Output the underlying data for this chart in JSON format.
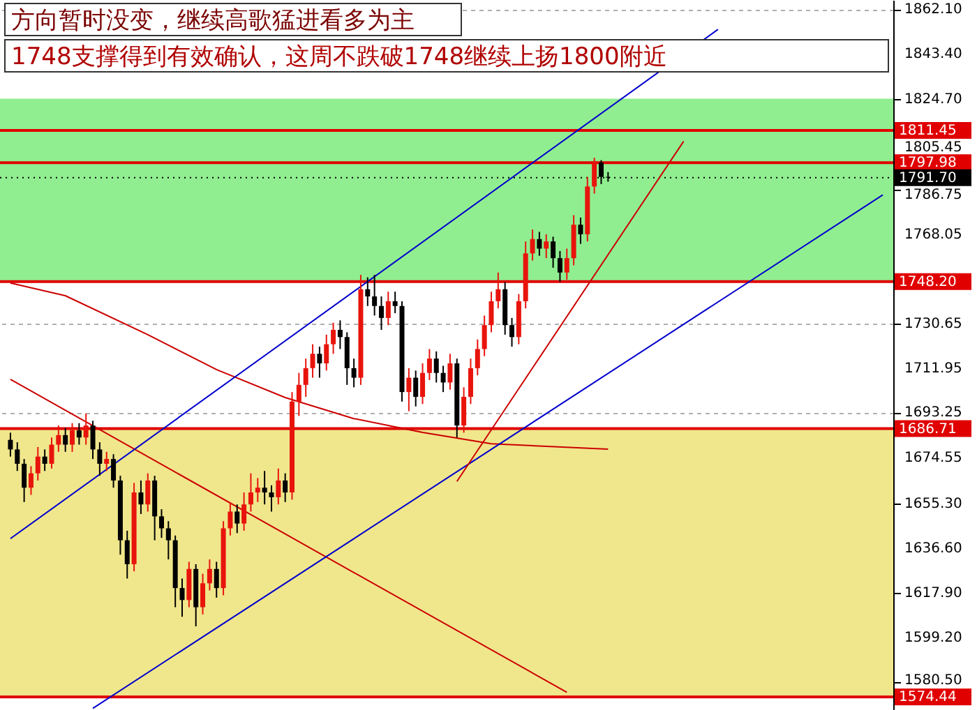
{
  "chart_data": {
    "type": "candlestick",
    "title": "方向暂时没变，继续高歌猛进看多为主",
    "subtitle": "1748支撑得到有效确认，这周不跌破1748继续上扬1800附近",
    "categories": [
      null,
      null,
      null,
      null,
      null,
      null,
      null,
      null,
      null,
      null,
      null,
      null,
      null,
      null,
      null,
      null,
      null,
      null,
      null,
      null,
      null,
      null,
      null,
      null,
      null,
      null,
      null,
      null,
      null,
      null,
      null,
      null,
      null,
      null,
      null,
      null,
      null,
      null,
      null,
      null,
      null,
      null,
      null,
      null,
      null,
      null,
      null,
      null,
      null,
      null,
      null,
      null,
      null,
      null,
      null,
      null,
      null,
      null,
      null,
      null,
      null,
      null,
      null,
      null,
      null,
      null,
      null,
      null,
      null,
      null,
      null,
      null,
      null,
      null,
      null,
      null,
      null,
      null,
      null,
      null,
      null,
      null,
      null,
      null,
      null,
      null,
      null,
      null,
      null,
      null,
      null,
      null,
      null,
      null,
      null,
      null,
      null,
      null,
      null,
      null,
      null,
      null,
      null,
      null,
      null,
      null,
      null,
      null,
      null,
      null,
      null,
      null,
      null,
      null,
      null,
      null,
      null,
      null,
      null,
      null,
      null,
      null,
      null,
      null,
      null,
      null,
      null,
      null
    ],
    "ohlc": [
      [
        1682,
        1685,
        1675,
        1678
      ],
      [
        1678,
        1681,
        1669,
        1672
      ],
      [
        1672,
        1674,
        1656,
        1662
      ],
      [
        1662,
        1671,
        1659,
        1668
      ],
      [
        1668,
        1679,
        1665,
        1675
      ],
      [
        1675,
        1678,
        1669,
        1672
      ],
      [
        1672,
        1683,
        1670,
        1680
      ],
      [
        1680,
        1688,
        1677,
        1684
      ],
      [
        1684,
        1687,
        1677,
        1680
      ],
      [
        1680,
        1689,
        1677,
        1686
      ],
      [
        1686,
        1689,
        1680,
        1683
      ],
      [
        1683,
        1693,
        1680,
        1688
      ],
      [
        1688,
        1690,
        1674,
        1678
      ],
      [
        1678,
        1681,
        1667,
        1672
      ],
      [
        1672,
        1677,
        1669,
        1674
      ],
      [
        1674,
        1676,
        1662,
        1665
      ],
      [
        1665,
        1667,
        1634,
        1640
      ],
      [
        1640,
        1644,
        1624,
        1630
      ],
      [
        1630,
        1664,
        1627,
        1660
      ],
      [
        1660,
        1665,
        1651,
        1655
      ],
      [
        1655,
        1668,
        1652,
        1665
      ],
      [
        1665,
        1667,
        1640,
        1650
      ],
      [
        1650,
        1653,
        1641,
        1645
      ],
      [
        1645,
        1648,
        1632,
        1640
      ],
      [
        1640,
        1642,
        1612,
        1620
      ],
      [
        1620,
        1624,
        1608,
        1615
      ],
      [
        1615,
        1631,
        1612,
        1628
      ],
      [
        1628,
        1630,
        1604,
        1612
      ],
      [
        1612,
        1626,
        1609,
        1622
      ],
      [
        1622,
        1632,
        1619,
        1628
      ],
      [
        1628,
        1631,
        1616,
        1620
      ],
      [
        1620,
        1648,
        1617,
        1645
      ],
      [
        1645,
        1656,
        1642,
        1652
      ],
      [
        1652,
        1655,
        1643,
        1647
      ],
      [
        1647,
        1660,
        1644,
        1655
      ],
      [
        1655,
        1668,
        1652,
        1660
      ],
      [
        1660,
        1666,
        1656,
        1662
      ],
      [
        1662,
        1669,
        1655,
        1660
      ],
      [
        1660,
        1663,
        1652,
        1658
      ],
      [
        1658,
        1670,
        1655,
        1665
      ],
      [
        1665,
        1668,
        1656,
        1660
      ],
      [
        1660,
        1702,
        1657,
        1698
      ],
      [
        1698,
        1710,
        1692,
        1705
      ],
      [
        1705,
        1716,
        1700,
        1712
      ],
      [
        1712,
        1722,
        1708,
        1718
      ],
      [
        1718,
        1721,
        1708,
        1714
      ],
      [
        1714,
        1726,
        1711,
        1722
      ],
      [
        1722,
        1731,
        1718,
        1728
      ],
      [
        1728,
        1732,
        1720,
        1725
      ],
      [
        1725,
        1727,
        1705,
        1712
      ],
      [
        1712,
        1716,
        1704,
        1708
      ],
      [
        1708,
        1751,
        1705,
        1745
      ],
      [
        1745,
        1750,
        1738,
        1742
      ],
      [
        1742,
        1751,
        1734,
        1738
      ],
      [
        1738,
        1742,
        1728,
        1733
      ],
      [
        1733,
        1744,
        1730,
        1740
      ],
      [
        1740,
        1744,
        1735,
        1738
      ],
      [
        1738,
        1740,
        1698,
        1702
      ],
      [
        1702,
        1712,
        1694,
        1708
      ],
      [
        1708,
        1711,
        1696,
        1700
      ],
      [
        1700,
        1714,
        1697,
        1710
      ],
      [
        1710,
        1720,
        1707,
        1716
      ],
      [
        1716,
        1719,
        1706,
        1710
      ],
      [
        1710,
        1713,
        1702,
        1706
      ],
      [
        1706,
        1718,
        1703,
        1714
      ],
      [
        1714,
        1716,
        1683,
        1688
      ],
      [
        1688,
        1704,
        1685,
        1700
      ],
      [
        1700,
        1716,
        1697,
        1712
      ],
      [
        1712,
        1724,
        1709,
        1720
      ],
      [
        1720,
        1734,
        1717,
        1730
      ],
      [
        1730,
        1744,
        1727,
        1740
      ],
      [
        1740,
        1752,
        1737,
        1745
      ],
      [
        1745,
        1748,
        1726,
        1730
      ],
      [
        1730,
        1733,
        1721,
        1725
      ],
      [
        1725,
        1743,
        1722,
        1740
      ],
      [
        1740,
        1765,
        1737,
        1760
      ],
      [
        1760,
        1770,
        1757,
        1766
      ],
      [
        1766,
        1769,
        1759,
        1762
      ],
      [
        1762,
        1768,
        1758,
        1765
      ],
      [
        1765,
        1767,
        1754,
        1758
      ],
      [
        1758,
        1761,
        1748,
        1752
      ],
      [
        1752,
        1762,
        1749,
        1758
      ],
      [
        1758,
        1776,
        1755,
        1772
      ],
      [
        1772,
        1775,
        1764,
        1768
      ],
      [
        1768,
        1792,
        1765,
        1788
      ],
      [
        1788,
        1800,
        1785,
        1798
      ],
      [
        1798,
        1799,
        1789,
        1792
      ],
      [
        1792,
        1794,
        1790,
        1791.7
      ],
      null,
      null,
      null,
      null,
      null,
      null,
      null,
      null,
      null,
      null,
      null,
      null,
      null,
      null,
      null,
      null,
      null,
      null,
      null,
      null,
      null,
      null,
      null,
      null,
      null,
      null,
      null,
      null,
      null,
      null,
      null,
      null,
      null,
      null,
      null,
      null,
      null,
      null,
      null,
      null
    ],
    "series": [
      {
        "type": "line",
        "color": "#cc0000",
        "values": [
          1747.6,
          null,
          null,
          null,
          null,
          null,
          null,
          null,
          1742.3,
          null,
          null,
          null,
          null,
          null,
          null,
          null,
          null,
          null,
          null,
          null,
          1726.0,
          null,
          null,
          null,
          null,
          null,
          null,
          null,
          null,
          null,
          1711.4,
          null,
          null,
          null,
          null,
          null,
          null,
          null,
          null,
          null,
          1699.7,
          null,
          null,
          null,
          null,
          null,
          null,
          null,
          null,
          null,
          1690.9,
          null,
          null,
          null,
          null,
          null,
          null,
          null,
          null,
          null,
          1685.1,
          null,
          null,
          null,
          null,
          null,
          null,
          null,
          null,
          null,
          1680.4,
          null,
          null,
          null,
          null,
          null,
          null,
          null,
          null,
          null,
          null,
          null,
          null,
          null,
          null,
          null,
          null,
          1678.1,
          null,
          null,
          null,
          null,
          null,
          null,
          null,
          null,
          null,
          null,
          null,
          null,
          null,
          null,
          null,
          null,
          null,
          null,
          null,
          null,
          null,
          null,
          null,
          null,
          null,
          null,
          null,
          null,
          null,
          null,
          null,
          null,
          null,
          null,
          null,
          null,
          null,
          null,
          null,
          null
        ]
      },
      {
        "type": "line",
        "color": "#cc0000",
        "values": [
          1707.3,
          null,
          null,
          null,
          null,
          null,
          null,
          null,
          null,
          null,
          null,
          null,
          null,
          null,
          null,
          null,
          null,
          null,
          null,
          null,
          null,
          null,
          null,
          null,
          null,
          null,
          null,
          null,
          null,
          null,
          null,
          null,
          null,
          null,
          null,
          null,
          null,
          null,
          null,
          null,
          null,
          null,
          null,
          null,
          null,
          null,
          null,
          null,
          null,
          null,
          null,
          null,
          null,
          null,
          null,
          null,
          null,
          null,
          null,
          null,
          null,
          null,
          null,
          null,
          null,
          null,
          null,
          null,
          null,
          null,
          null,
          null,
          null,
          null,
          null,
          null,
          null,
          null,
          null,
          null,
          null,
          1576.4,
          null,
          null,
          null,
          null,
          null,
          null,
          null,
          null,
          null,
          null,
          null,
          null,
          null,
          null,
          null,
          null,
          null,
          null,
          null,
          null,
          null,
          null,
          null,
          null,
          null,
          null,
          null,
          null,
          null,
          null,
          null,
          null,
          null,
          null,
          null,
          null,
          null,
          null,
          null,
          null,
          null,
          null,
          null,
          null,
          null,
          null
        ]
      },
      {
        "type": "line",
        "color": "#0000cc",
        "values": [
          null,
          null,
          null,
          null,
          null,
          null,
          null,
          null,
          null,
          null,
          null,
          null,
          1569.7,
          null,
          null,
          null,
          null,
          null,
          null,
          null,
          null,
          null,
          null,
          null,
          null,
          null,
          null,
          null,
          null,
          null,
          null,
          null,
          null,
          null,
          null,
          null,
          null,
          null,
          null,
          null,
          null,
          null,
          null,
          null,
          null,
          null,
          null,
          null,
          null,
          null,
          null,
          null,
          null,
          null,
          null,
          null,
          null,
          null,
          null,
          null,
          null,
          null,
          null,
          null,
          null,
          null,
          null,
          null,
          null,
          null,
          null,
          null,
          null,
          null,
          null,
          null,
          null,
          null,
          null,
          null,
          null,
          null,
          null,
          null,
          null,
          null,
          null,
          null,
          null,
          null,
          null,
          null,
          null,
          null,
          null,
          null,
          null,
          null,
          null,
          null,
          null,
          null,
          null,
          null,
          null,
          null,
          null,
          null,
          null,
          null,
          null,
          null,
          null,
          null,
          null,
          null,
          null,
          null,
          null,
          null,
          null,
          null,
          null,
          null,
          null,
          null,
          null,
          1784.5
        ]
      },
      {
        "type": "line",
        "color": "#0000cc",
        "values": [
          1640.7,
          null,
          null,
          null,
          null,
          null,
          null,
          null,
          null,
          null,
          null,
          null,
          null,
          null,
          null,
          null,
          null,
          null,
          null,
          null,
          null,
          null,
          null,
          null,
          null,
          null,
          null,
          null,
          null,
          null,
          null,
          null,
          null,
          null,
          null,
          null,
          null,
          null,
          null,
          null,
          null,
          null,
          null,
          null,
          null,
          null,
          null,
          null,
          null,
          null,
          null,
          null,
          null,
          null,
          null,
          null,
          null,
          null,
          null,
          null,
          null,
          null,
          null,
          null,
          null,
          null,
          null,
          null,
          null,
          null,
          null,
          null,
          null,
          null,
          null,
          null,
          null,
          null,
          null,
          null,
          null,
          null,
          null,
          null,
          null,
          null,
          null,
          null,
          null,
          null,
          null,
          null,
          null,
          null,
          null,
          null,
          null,
          null,
          null,
          null,
          null,
          null,
          null,
          1853.7,
          null,
          null,
          null,
          null,
          null,
          null,
          null,
          null,
          null,
          null,
          null,
          null,
          null,
          null,
          null,
          null,
          null,
          null,
          null,
          null,
          null,
          null,
          null,
          null
        ]
      },
      {
        "type": "line",
        "color": "#cc0000",
        "values": [
          null,
          null,
          null,
          null,
          null,
          null,
          null,
          null,
          null,
          null,
          null,
          null,
          null,
          null,
          null,
          null,
          null,
          null,
          null,
          null,
          null,
          null,
          null,
          null,
          null,
          null,
          null,
          null,
          null,
          null,
          null,
          null,
          null,
          null,
          null,
          null,
          null,
          null,
          null,
          null,
          null,
          null,
          null,
          null,
          null,
          null,
          null,
          null,
          null,
          null,
          null,
          null,
          null,
          null,
          null,
          null,
          null,
          null,
          null,
          null,
          null,
          null,
          null,
          null,
          null,
          1664.6,
          null,
          null,
          null,
          null,
          null,
          null,
          null,
          null,
          null,
          null,
          null,
          null,
          null,
          null,
          null,
          null,
          null,
          null,
          null,
          null,
          null,
          null,
          null,
          null,
          null,
          null,
          null,
          null,
          null,
          null,
          null,
          null,
          1806.9,
          null,
          null,
          null,
          null,
          null,
          null,
          null,
          null,
          null,
          null,
          null,
          null,
          null,
          null,
          null,
          null,
          null,
          null,
          null,
          null,
          null,
          null,
          null,
          null,
          null,
          null,
          null,
          null,
          null
        ]
      }
    ],
    "ylim": [
      1569,
      1866
    ],
    "yticks": [
      {
        "value": 1862.1,
        "label": "1862.10"
      },
      {
        "value": 1843.4,
        "label": "1843.40"
      },
      {
        "value": 1824.7,
        "label": "1824.70"
      },
      1805.45,
      1786.75,
      1768.05,
      1730.65,
      1711.95,
      1693.25,
      1674.55,
      {
        "value": 1655.3,
        "label": "1655.30"
      },
      {
        "value": 1636.6,
        "label": "1636.60"
      },
      {
        "value": 1617.9,
        "label": "1617.90"
      },
      {
        "value": 1599.2,
        "label": "1599.20"
      },
      {
        "value": 1580.5,
        "label": "1580.50"
      }
    ],
    "grid": "y",
    "ref_lines": [
      {
        "axis": "y",
        "value": 1811.45,
        "label": "1811.45",
        "color": "#e00000"
      },
      {
        "axis": "y",
        "value": 1797.98,
        "label": "1797.98",
        "color": "#e00000"
      },
      {
        "axis": "y",
        "value": 1791.7,
        "label": "1791.70",
        "color": "#000000",
        "line_style": "dotted"
      },
      {
        "axis": "y",
        "value": 1748.2,
        "label": "1748.20",
        "color": "#e00000"
      },
      {
        "axis": "y",
        "value": 1686.71,
        "label": "1686.71",
        "color": "#e00000"
      },
      {
        "axis": "y",
        "value": 1574.44,
        "label": "1574.44",
        "color": "#e00000"
      }
    ],
    "bands": [
      {
        "axis": "y",
        "from": 1748.2,
        "to": 1824.7,
        "color": "#90ee90"
      },
      {
        "axis": "y",
        "from": 1574.44,
        "to": 1686.71,
        "color": "#f0e68c"
      }
    ]
  }
}
